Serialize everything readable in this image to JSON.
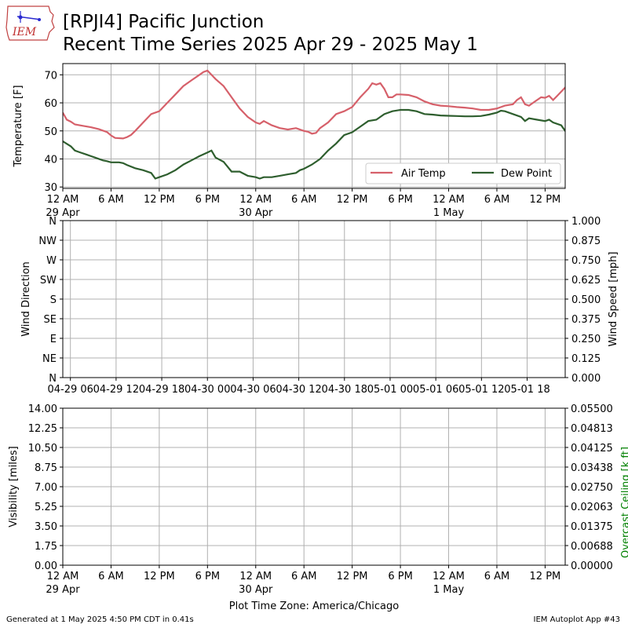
{
  "header": {
    "logo_text": "IEM",
    "title_line1": "[RPJI4] Pacific Junction",
    "title_line2": "Recent Time Series 2025 Apr 29 - 2025 May 1"
  },
  "footer": {
    "generated": "Generated at 1 May 2025 4:50 PM CDT in 0.41s",
    "app": "IEM Autoplot App #43"
  },
  "colors": {
    "air_temp": "#d6606a",
    "dew_point": "#2e5e2e",
    "ceiling_label": "#008000",
    "grid": "#b0b0b0"
  },
  "chart_data": [
    {
      "type": "line",
      "panel": "temperature",
      "ylabel": "Temperature [F]",
      "ylim": [
        29.5,
        74
      ],
      "yticks": [
        30,
        40,
        50,
        60,
        70
      ],
      "x_hours_range": [
        0,
        62.5
      ],
      "xticks": [
        {
          "hour": 0,
          "label": "12 AM",
          "sub": "29 Apr"
        },
        {
          "hour": 6,
          "label": "6 AM",
          "sub": ""
        },
        {
          "hour": 12,
          "label": "12 PM",
          "sub": ""
        },
        {
          "hour": 18,
          "label": "6 PM",
          "sub": ""
        },
        {
          "hour": 24,
          "label": "12 AM",
          "sub": "30 Apr"
        },
        {
          "hour": 30,
          "label": "6 AM",
          "sub": ""
        },
        {
          "hour": 36,
          "label": "12 PM",
          "sub": ""
        },
        {
          "hour": 42,
          "label": "6 PM",
          "sub": ""
        },
        {
          "hour": 48,
          "label": "12 AM",
          "sub": "1 May"
        },
        {
          "hour": 54,
          "label": "6 AM",
          "sub": ""
        },
        {
          "hour": 60,
          "label": "12 PM",
          "sub": ""
        }
      ],
      "legend": {
        "placement": "lower-right",
        "entries": [
          "Air Temp",
          "Dew Point"
        ]
      },
      "grid": true,
      "series": [
        {
          "name": "Air Temp",
          "color_key": "air_temp",
          "points": [
            [
              0,
              56.5
            ],
            [
              0.5,
              54
            ],
            [
              1,
              53.3
            ],
            [
              1.5,
              52.3
            ],
            [
              2.5,
              51.8
            ],
            [
              3.5,
              51.3
            ],
            [
              4.5,
              50.6
            ],
            [
              5.5,
              49.6
            ],
            [
              6,
              48.4
            ],
            [
              6.5,
              47.5
            ],
            [
              7.5,
              47.3
            ],
            [
              8,
              47.8
            ],
            [
              8.5,
              48.6
            ],
            [
              9,
              50
            ],
            [
              10,
              53
            ],
            [
              11,
              56
            ],
            [
              12,
              57
            ],
            [
              13,
              60
            ],
            [
              14,
              63
            ],
            [
              15,
              66
            ],
            [
              16,
              68
            ],
            [
              17,
              70
            ],
            [
              17.5,
              71
            ],
            [
              18,
              71.5
            ],
            [
              18.5,
              70
            ],
            [
              19,
              68.5
            ],
            [
              20,
              66
            ],
            [
              21,
              62
            ],
            [
              22,
              58
            ],
            [
              22.5,
              56.5
            ],
            [
              23,
              55
            ],
            [
              24,
              53
            ],
            [
              24.5,
              52.5
            ],
            [
              25,
              53.5
            ],
            [
              26,
              52
            ],
            [
              27,
              51
            ],
            [
              28,
              50.5
            ],
            [
              29,
              51
            ],
            [
              30,
              50
            ],
            [
              30.5,
              49.7
            ],
            [
              31,
              49
            ],
            [
              31.5,
              49.3
            ],
            [
              32,
              51
            ],
            [
              33,
              53
            ],
            [
              34,
              56
            ],
            [
              35,
              57
            ],
            [
              36,
              58.5
            ],
            [
              37,
              62
            ],
            [
              38,
              65
            ],
            [
              38.5,
              67
            ],
            [
              39,
              66.5
            ],
            [
              39.5,
              67
            ],
            [
              40,
              65
            ],
            [
              40.5,
              62
            ],
            [
              41,
              62
            ],
            [
              41.5,
              63
            ],
            [
              42,
              63
            ],
            [
              43,
              62.8
            ],
            [
              44,
              62
            ],
            [
              45,
              60.5
            ],
            [
              46,
              59.5
            ],
            [
              47,
              59
            ],
            [
              48,
              58.8
            ],
            [
              49,
              58.5
            ],
            [
              50,
              58.3
            ],
            [
              51,
              58
            ],
            [
              52,
              57.5
            ],
            [
              53,
              57.5
            ],
            [
              54,
              58
            ],
            [
              55,
              59
            ],
            [
              56,
              59.5
            ],
            [
              56.5,
              61
            ],
            [
              57,
              62
            ],
            [
              57.5,
              59.5
            ],
            [
              58,
              59
            ],
            [
              58.5,
              60
            ],
            [
              59,
              61
            ],
            [
              59.5,
              62
            ],
            [
              60,
              61.8
            ],
            [
              60.5,
              62.5
            ],
            [
              61,
              61
            ],
            [
              61.5,
              62.5
            ],
            [
              62,
              64
            ],
            [
              62.5,
              65.5
            ],
            [
              63,
              66
            ],
            [
              63.5,
              65.8
            ]
          ]
        },
        {
          "name": "Dew Point",
          "color_key": "dew_point",
          "points": [
            [
              0,
              46.3
            ],
            [
              1,
              44.5
            ],
            [
              1.5,
              43
            ],
            [
              2,
              42.5
            ],
            [
              3,
              41.5
            ],
            [
              3.5,
              41
            ],
            [
              4,
              40.5
            ],
            [
              5,
              39.5
            ],
            [
              5.5,
              39.2
            ],
            [
              6,
              38.8
            ],
            [
              6.5,
              38.8
            ],
            [
              7,
              38.8
            ],
            [
              7.5,
              38.5
            ],
            [
              8,
              37.8
            ],
            [
              9,
              36.7
            ],
            [
              10,
              36
            ],
            [
              11,
              35
            ],
            [
              11.5,
              33
            ],
            [
              12,
              33.5
            ],
            [
              13,
              34.5
            ],
            [
              14,
              36
            ],
            [
              15,
              38
            ],
            [
              16,
              39.5
            ],
            [
              17,
              41
            ],
            [
              18,
              42.3
            ],
            [
              18.5,
              43
            ],
            [
              19,
              40.5
            ],
            [
              20,
              39
            ],
            [
              21,
              35.5
            ],
            [
              22,
              35.5
            ],
            [
              23,
              34
            ],
            [
              24,
              33.5
            ],
            [
              24.5,
              33
            ],
            [
              25,
              33.5
            ],
            [
              26,
              33.5
            ],
            [
              27,
              34
            ],
            [
              28,
              34.5
            ],
            [
              29,
              35
            ],
            [
              29.5,
              36
            ],
            [
              30,
              36.5
            ],
            [
              31,
              38
            ],
            [
              32,
              40
            ],
            [
              33,
              43
            ],
            [
              34,
              45.5
            ],
            [
              35,
              48.5
            ],
            [
              36,
              49.5
            ],
            [
              37,
              51.5
            ],
            [
              38,
              53.5
            ],
            [
              39,
              54
            ],
            [
              40,
              56
            ],
            [
              41,
              57
            ],
            [
              42,
              57.5
            ],
            [
              43,
              57.5
            ],
            [
              44,
              57
            ],
            [
              45,
              56
            ],
            [
              46,
              55.8
            ],
            [
              47,
              55.5
            ],
            [
              48,
              55.4
            ],
            [
              49,
              55.3
            ],
            [
              50,
              55.2
            ],
            [
              51,
              55.2
            ],
            [
              52,
              55.3
            ],
            [
              53,
              55.8
            ],
            [
              54,
              56.5
            ],
            [
              54.5,
              57.2
            ],
            [
              55,
              57
            ],
            [
              56,
              56
            ],
            [
              57,
              55
            ],
            [
              57.5,
              53.5
            ],
            [
              58,
              54.5
            ],
            [
              59,
              54
            ],
            [
              60,
              53.5
            ],
            [
              60.5,
              54
            ],
            [
              61,
              53
            ],
            [
              62,
              52
            ],
            [
              62.5,
              50
            ],
            [
              63,
              49.5
            ],
            [
              63.5,
              49.8
            ]
          ]
        }
      ]
    },
    {
      "type": "line",
      "panel": "wind",
      "ylabel": "Wind Direction",
      "ylabel_right": "Wind Speed [mph]",
      "ylim": [
        0,
        360
      ],
      "yticks_left": [
        "N",
        "NE",
        "E",
        "SE",
        "S",
        "SW",
        "W",
        "NW",
        "N"
      ],
      "ylim_right": [
        0,
        1
      ],
      "yticks_right": [
        "0.000",
        "0.125",
        "0.250",
        "0.375",
        "0.500",
        "0.625",
        "0.750",
        "0.875",
        "1.000"
      ],
      "xticks": [
        {
          "hour": 6,
          "label": "04-29 06"
        },
        {
          "hour": 12,
          "label": "04-29 12"
        },
        {
          "hour": 18,
          "label": "04-29 18"
        },
        {
          "hour": 24,
          "label": "04-30 00"
        },
        {
          "hour": 30,
          "label": "04-30 06"
        },
        {
          "hour": 36,
          "label": "04-30 12"
        },
        {
          "hour": 42,
          "label": "04-30 18"
        },
        {
          "hour": 48,
          "label": "05-01 00"
        },
        {
          "hour": 54,
          "label": "05-01 06"
        },
        {
          "hour": 60,
          "label": "05-01 12"
        },
        {
          "hour": 66,
          "label": "05-01 18"
        }
      ],
      "x_hours_range": [
        5,
        71
      ],
      "grid": true,
      "series": []
    },
    {
      "type": "line",
      "panel": "visibility",
      "ylabel": "Visibility [miles]",
      "ylabel_right": "Overcast Ceiling [k ft]",
      "ylim": [
        0,
        14
      ],
      "yticks_left": [
        "0.00",
        "1.75",
        "3.50",
        "5.25",
        "7.00",
        "8.75",
        "10.50",
        "12.25",
        "14.00"
      ],
      "ylim_right": [
        0,
        0.055
      ],
      "yticks_right": [
        "0.00000",
        "0.00688",
        "0.01375",
        "0.02063",
        "0.02750",
        "0.03438",
        "0.04125",
        "0.04813",
        "0.05500"
      ],
      "xlabel": "Plot Time Zone: America/Chicago",
      "x_hours_range": [
        0,
        62.5
      ],
      "grid": true,
      "series": []
    }
  ]
}
